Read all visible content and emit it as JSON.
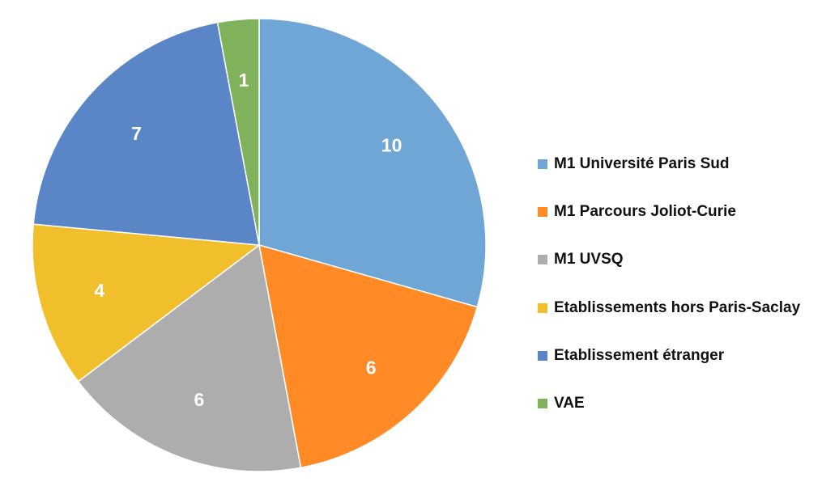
{
  "chart_data": {
    "type": "pie",
    "title": "",
    "legend_position": "right",
    "start_angle_deg": 0,
    "direction": "clockwise",
    "categories": [
      "M1 Université Paris Sud",
      "M1 Parcours Joliot-Curie",
      "M1 UVSQ",
      "Etablissements hors Paris-Saclay",
      "Etablissement étranger",
      "VAE"
    ],
    "values": [
      10,
      6,
      6,
      4,
      7,
      1
    ],
    "data_labels": [
      "10",
      "6",
      "6",
      "4",
      "7",
      "1"
    ],
    "colors": [
      "#70A6D6",
      "#FF8A26",
      "#ADADAD",
      "#F2BF2C",
      "#5A85C6",
      "#80B25C"
    ]
  }
}
